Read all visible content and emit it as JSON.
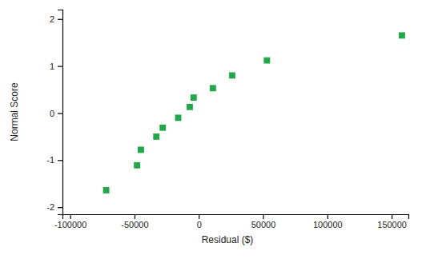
{
  "chart_data": {
    "type": "scatter",
    "x_label": "Residual ($)",
    "y_label": "Normal Score",
    "x": [
      -72000,
      -48000,
      -45000,
      -33000,
      -28000,
      -16000,
      -7000,
      -4000,
      11000,
      26000,
      53000,
      158000
    ],
    "values": [
      -1.64,
      -1.11,
      -0.78,
      -0.5,
      -0.31,
      -0.1,
      0.13,
      0.33,
      0.53,
      0.8,
      1.12,
      1.65
    ],
    "color": "#22a84b",
    "marker": "square",
    "xlim": [
      -106000,
      163000
    ],
    "ylim": [
      -2.15,
      2.2
    ],
    "xticks": [
      -100000,
      -50000,
      0,
      50000,
      100000,
      150000
    ],
    "yticks": [
      -2,
      -1,
      0,
      1,
      2
    ],
    "grid": false
  }
}
